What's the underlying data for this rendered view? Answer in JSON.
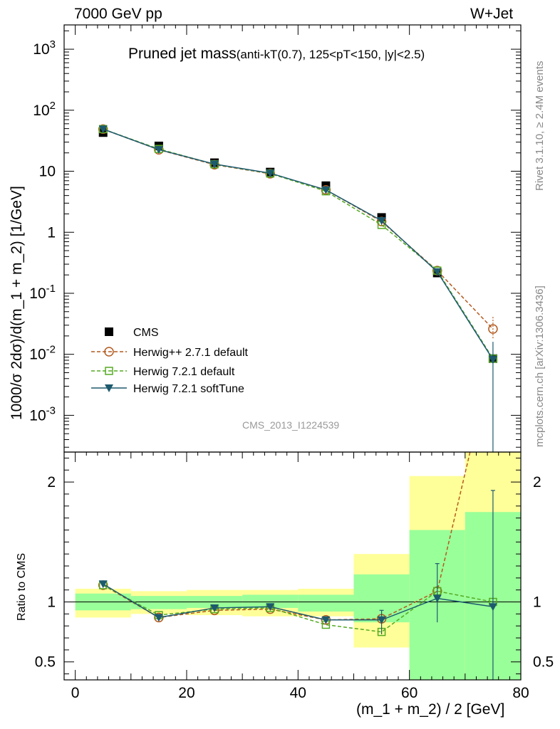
{
  "header": {
    "energy_label": "7000 GeV pp",
    "process_label": "W+Jet"
  },
  "side_text": {
    "rivet": "Rivet 3.1.10, ≥ 2.4M events",
    "mcplots": "mcplots.cern.ch [arXiv:1306.3436]"
  },
  "chart_data": [
    {
      "type": "scatter",
      "panel": "main",
      "title": "Pruned jet mass",
      "subtitle": "(anti-kT(0.7), 125<pT<150, |y|<2.5)",
      "ylabel": "1000/σ 2dσ)/d(m_1 + m_2) [1/GeV]",
      "analysis_tag": "CMS_2013_I1224539",
      "yscale": "log",
      "ylim": [
        0.00025,
        2500
      ],
      "xlim": [
        -2,
        80
      ],
      "y_tick_labels": [
        "10^-3",
        "10^-2",
        "10^-1",
        "1",
        "10",
        "10^2",
        "10^3"
      ],
      "legend_placement": "lower-left",
      "x": [
        5,
        15,
        25,
        35,
        45,
        55,
        65,
        75
      ],
      "series": [
        {
          "name": "CMS",
          "color": "#000000",
          "marker": "square-filled",
          "values": [
            43,
            26,
            13.8,
            9.7,
            5.8,
            1.75,
            0.215,
            0.0085
          ]
        },
        {
          "name": "Herwig++ 2.7.1 default",
          "color": "#b35a1f",
          "marker": "circle-open",
          "line": "dashed",
          "values": [
            49,
            22.5,
            12.8,
            9.1,
            4.95,
            1.5,
            0.235,
            0.026
          ]
        },
        {
          "name": "Herwig 7.2.1 default",
          "color": "#55aa22",
          "marker": "square-open",
          "line": "dashed",
          "values": [
            49,
            23.2,
            13.0,
            9.2,
            4.7,
            1.32,
            0.235,
            0.0085
          ]
        },
        {
          "name": "Herwig 7.2.1 softTune",
          "color": "#1d5a6e",
          "marker": "triangle-down",
          "line": "solid",
          "values": [
            49,
            22.6,
            13.1,
            9.3,
            4.95,
            1.55,
            0.225,
            0.0082
          ]
        }
      ]
    },
    {
      "type": "line",
      "panel": "ratio",
      "ylabel": "Ratio to CMS",
      "xlabel": "(m_1 + m_2) / 2 [GeV]",
      "xlim": [
        -2,
        80
      ],
      "ylim": [
        0.35,
        2.25
      ],
      "x_ticks": [
        0,
        20,
        40,
        60,
        80
      ],
      "y_ticks": [
        0.5,
        1,
        2
      ],
      "bins": [
        [
          0,
          10
        ],
        [
          10,
          20
        ],
        [
          20,
          30
        ],
        [
          30,
          40
        ],
        [
          40,
          50
        ],
        [
          50,
          60
        ],
        [
          60,
          70
        ],
        [
          70,
          80
        ]
      ],
      "band_stat_sys": [
        [
          0.87,
          1.11
        ],
        [
          0.9,
          1.09
        ],
        [
          0.89,
          1.1
        ],
        [
          0.88,
          1.1
        ],
        [
          0.88,
          1.11
        ],
        [
          0.62,
          1.4
        ],
        [
          0.38,
          2.05
        ],
        [
          0.3,
          2.4
        ]
      ],
      "band_stat": [
        [
          0.93,
          1.07
        ],
        [
          0.94,
          1.05
        ],
        [
          0.95,
          1.05
        ],
        [
          0.95,
          1.06
        ],
        [
          0.92,
          1.06
        ],
        [
          0.83,
          1.23
        ],
        [
          0.35,
          1.6
        ],
        [
          0.35,
          1.75
        ]
      ],
      "x": [
        5,
        15,
        25,
        35,
        45,
        55,
        65,
        75
      ],
      "series": [
        {
          "name": "Herwig++ 2.7.1 default",
          "color": "#b35a1f",
          "values": [
            1.14,
            0.87,
            0.93,
            0.94,
            0.85,
            0.86,
            1.09,
            3.06
          ]
        },
        {
          "name": "Herwig 7.2.1 default",
          "color": "#55aa22",
          "values": [
            1.14,
            0.89,
            0.94,
            0.95,
            0.81,
            0.75,
            1.09,
            1.0
          ]
        },
        {
          "name": "Herwig 7.2.1 softTune",
          "color": "#1d5a6e",
          "values": [
            1.15,
            0.87,
            0.95,
            0.96,
            0.85,
            0.85,
            1.03,
            0.96
          ]
        }
      ]
    }
  ]
}
